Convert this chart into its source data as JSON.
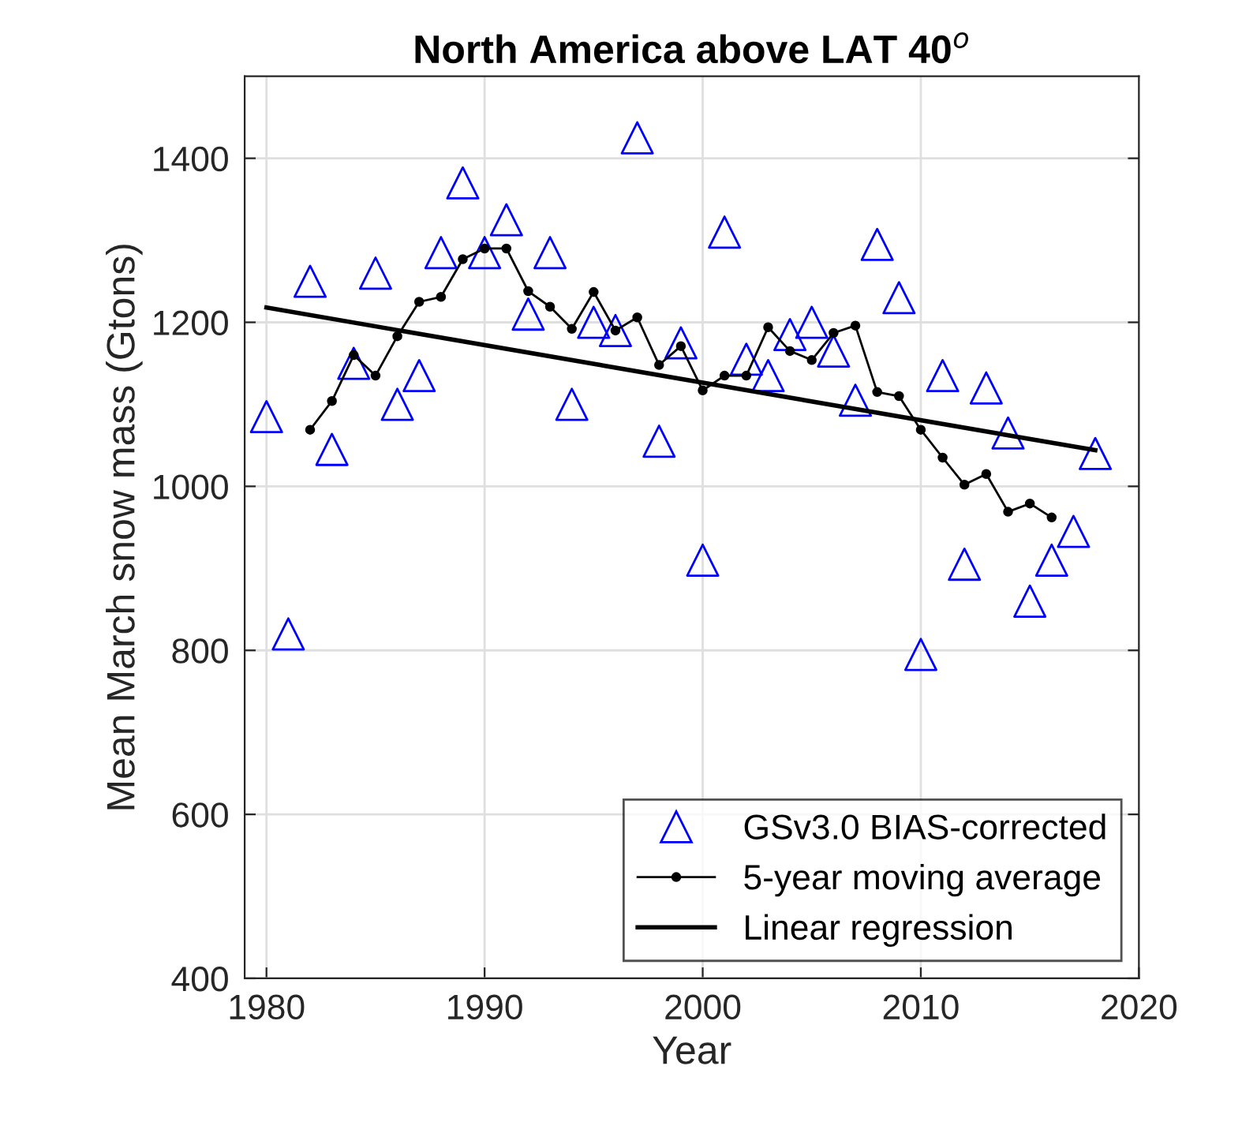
{
  "chart_data": {
    "type": "scatter",
    "title": "North America above LAT 40$^{o}$",
    "xlabel": "Year",
    "ylabel": "Mean March snow mass (Gtons)",
    "xlim": [
      1979,
      2020
    ],
    "xticks": [
      1980,
      1990,
      2000,
      2010,
      2020
    ],
    "ylim": [
      400,
      1500
    ],
    "yticks": [
      400,
      600,
      800,
      1000,
      1200,
      1400
    ],
    "grid": true,
    "legend": "bottom right",
    "series": [
      {
        "name": "GSv3.0 BIAS-corrected",
        "marker": "triangle",
        "color": "#0000ff",
        "x": [
          1980,
          1981,
          1982,
          1983,
          1984,
          1985,
          1986,
          1987,
          1988,
          1989,
          1990,
          1991,
          1992,
          1993,
          1994,
          1995,
          1996,
          1997,
          1998,
          1999,
          2000,
          2001,
          2002,
          2003,
          2004,
          2005,
          2006,
          2007,
          2008,
          2009,
          2010,
          2011,
          2012,
          2013,
          2014,
          2015,
          2016,
          2017,
          2018
        ],
        "values": [
          1085,
          820,
          1250,
          1045,
          1150,
          1260,
          1100,
          1135,
          1285,
          1370,
          1285,
          1325,
          1210,
          1285,
          1100,
          1200,
          1190,
          1425,
          1055,
          1175,
          910,
          1310,
          1155,
          1135,
          1185,
          1200,
          1165,
          1105,
          1295,
          1230,
          795,
          1135,
          905,
          1120,
          1065,
          860,
          910,
          945,
          1040
        ]
      },
      {
        "name": "5-year moving average",
        "type": "line",
        "marker": "circle",
        "color": "#000000",
        "x": [
          1982,
          1983,
          1984,
          1985,
          1986,
          1987,
          1988,
          1989,
          1990,
          1991,
          1992,
          1993,
          1994,
          1995,
          1996,
          1997,
          1998,
          1999,
          2000,
          2001,
          2002,
          2003,
          2004,
          2005,
          2006,
          2007,
          2008,
          2009,
          2010,
          2011,
          2012,
          2013,
          2014,
          2015,
          2016
        ],
        "values": [
          1069,
          1104,
          1160,
          1135,
          1183,
          1225,
          1231,
          1277,
          1290,
          1290,
          1238,
          1219,
          1192,
          1237,
          1190,
          1206,
          1148,
          1171,
          1117,
          1135,
          1135,
          1194,
          1165,
          1154,
          1187,
          1196,
          1115,
          1110,
          1069,
          1035,
          1002,
          1015,
          969,
          979,
          962
        ]
      },
      {
        "name": "Linear regression",
        "type": "line",
        "marker": "none",
        "color": "#000000",
        "x": [
          1980,
          2018
        ],
        "values": [
          1218,
          1044
        ]
      }
    ]
  }
}
